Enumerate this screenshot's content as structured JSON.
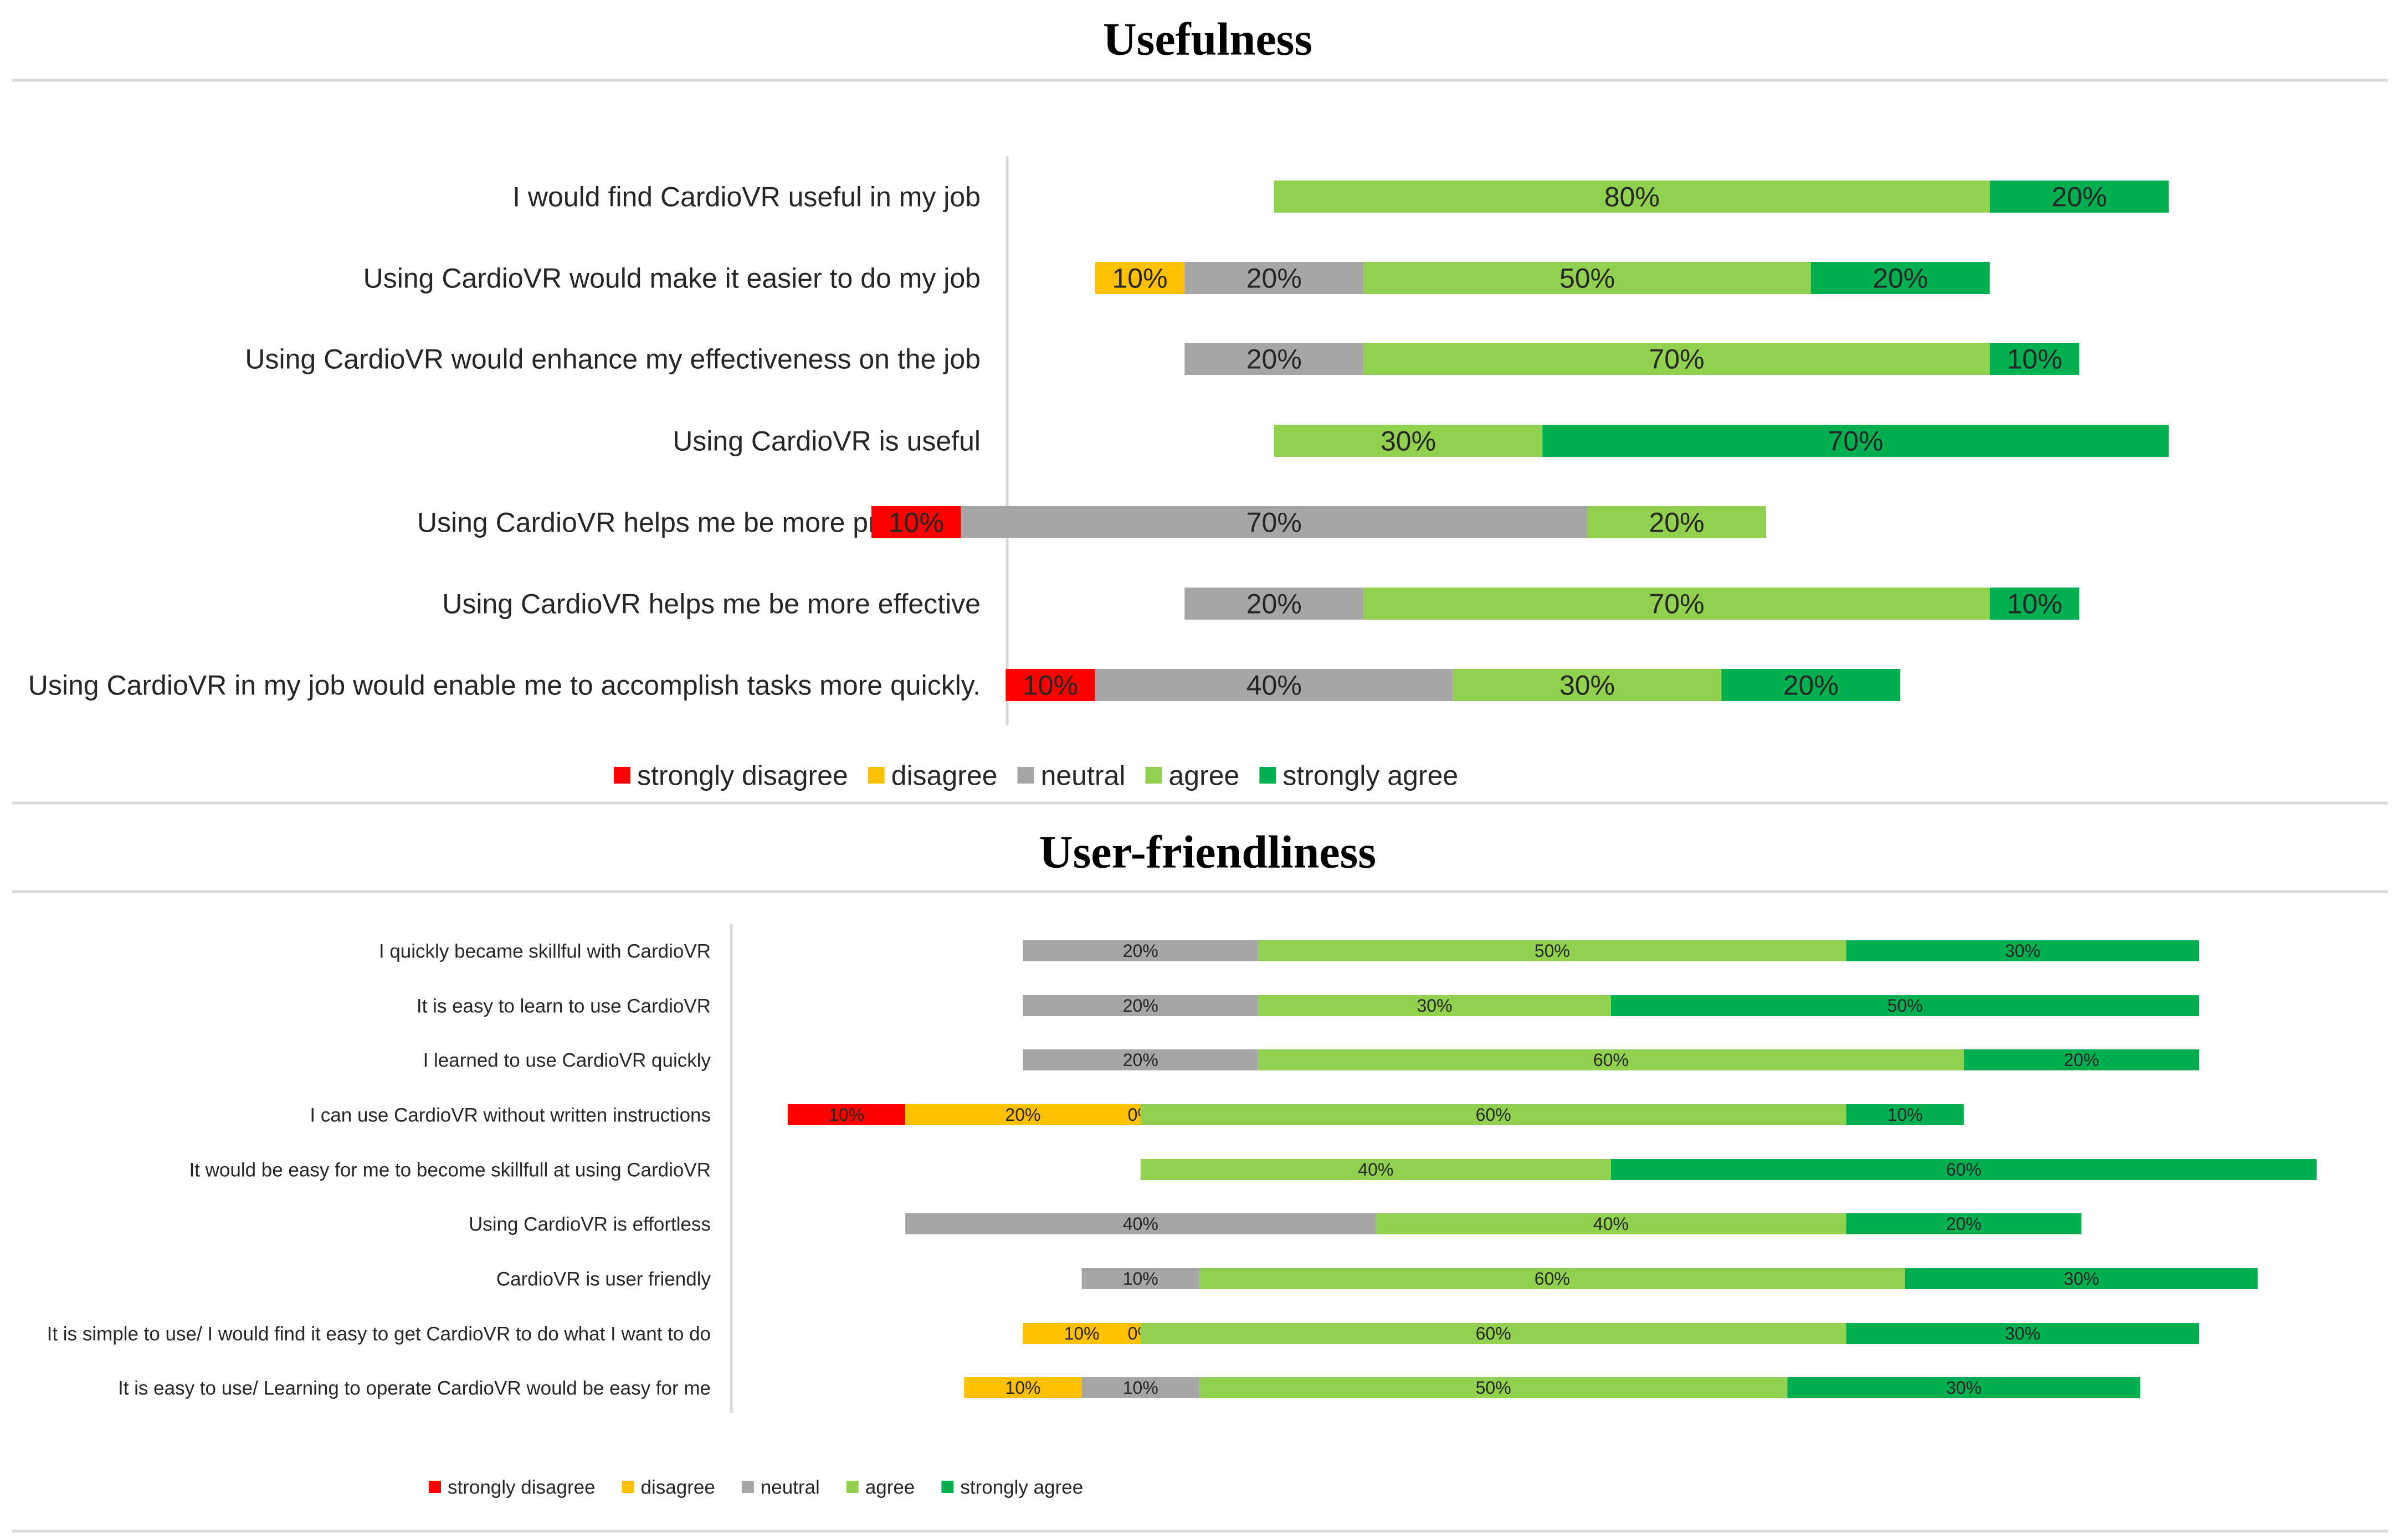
{
  "colors": {
    "strongly_disagree": "#FF0000",
    "disagree": "#FFC000",
    "neutral": "#A6A6A6",
    "agree": "#92D050",
    "strongly_agree": "#00B050",
    "rule": "#D9D9D9",
    "axis": "#D9D9D9",
    "text": "#262626"
  },
  "chart_data": [
    {
      "type": "bar",
      "stacked": true,
      "orientation": "horizontal",
      "title": "Usefulness",
      "legend": [
        "strongly disagree",
        "disagree",
        "neutral",
        "agree",
        "strongly agree"
      ],
      "legend_position": "bottom",
      "categories": [
        "I would find CardioVR useful in my job",
        "Using CardioVR would make it easier to do my job",
        "Using CardioVR would enhance my effectiveness on the job",
        "Using CardioVR  is useful",
        "Using CardioVR  helps me be more productive",
        "Using CardioVR  helps me be more effective",
        "Using CardioVR in my job would enable me to accomplish tasks more quickly."
      ],
      "series": [
        {
          "name": "strongly disagree",
          "values": [
            0,
            0,
            0,
            0,
            10,
            0,
            10
          ],
          "labels": [
            "",
            "",
            "",
            "",
            "10%",
            "",
            "10%"
          ]
        },
        {
          "name": "disagree",
          "values": [
            0,
            10,
            0,
            0,
            0,
            0,
            0
          ],
          "labels": [
            "",
            "10%",
            "",
            "",
            "",
            "",
            ""
          ]
        },
        {
          "name": "neutral",
          "values": [
            0,
            20,
            20,
            0,
            70,
            20,
            40
          ],
          "labels": [
            "",
            "20%",
            "20%",
            "",
            "70%",
            "20%",
            "40%"
          ]
        },
        {
          "name": "agree",
          "values": [
            80,
            50,
            70,
            30,
            20,
            70,
            30
          ],
          "labels": [
            "80%",
            "50%",
            "70%",
            "30%",
            "20%",
            "70%",
            "30%"
          ]
        },
        {
          "name": "strongly agree",
          "values": [
            20,
            20,
            10,
            70,
            0,
            10,
            20
          ],
          "labels": [
            "20%",
            "20%",
            "10%",
            "70%",
            "",
            "10%",
            "20%"
          ]
        }
      ]
    },
    {
      "type": "bar",
      "stacked": true,
      "orientation": "horizontal",
      "title": "User-friendliness",
      "legend": [
        "strongly disagree",
        "disagree",
        "neutral",
        "agree",
        "strongly agree"
      ],
      "legend_position": "bottom",
      "categories": [
        "I quickly became skillful with CardioVR",
        "It is easy to learn to use CardioVR",
        "I learned to use CardioVR quickly",
        "I can use CardioVR without written instructions",
        "It would be easy for me to become skillfull at using CardioVR",
        "Using CardioVR is effortless",
        "CardioVR is user friendly",
        "It is simple to use/ I would find it easy to get CardioVR to do what I want to do",
        "It is easy to use/ Learning to operate CardioVR would be easy for me"
      ],
      "series": [
        {
          "name": "strongly disagree",
          "values": [
            0,
            0,
            0,
            10,
            0,
            0,
            0,
            0,
            0
          ],
          "labels": [
            "",
            "",
            "",
            "10%",
            "",
            "",
            "",
            "",
            ""
          ]
        },
        {
          "name": "disagree",
          "values": [
            0,
            0,
            0,
            20,
            0,
            0,
            0,
            10,
            10
          ],
          "labels": [
            "",
            "",
            "",
            "20%",
            "",
            "",
            "",
            "10%",
            "10%"
          ]
        },
        {
          "name": "neutral",
          "values": [
            20,
            20,
            20,
            0,
            0,
            40,
            10,
            0,
            10
          ],
          "labels": [
            "20%",
            "20%",
            "20%",
            "0%",
            "",
            "40%",
            "10%",
            "0%",
            "10%"
          ]
        },
        {
          "name": "agree",
          "values": [
            50,
            30,
            60,
            60,
            40,
            40,
            60,
            60,
            50
          ],
          "labels": [
            "50%",
            "30%",
            "60%",
            "60%",
            "40%",
            "40%",
            "60%",
            "60%",
            "50%"
          ]
        },
        {
          "name": "strongly agree",
          "values": [
            30,
            50,
            20,
            10,
            60,
            20,
            30,
            30,
            30
          ],
          "labels": [
            "30%",
            "50%",
            "20%",
            "10%",
            "60%",
            "20%",
            "30%",
            "30%",
            "30%"
          ]
        }
      ]
    }
  ]
}
